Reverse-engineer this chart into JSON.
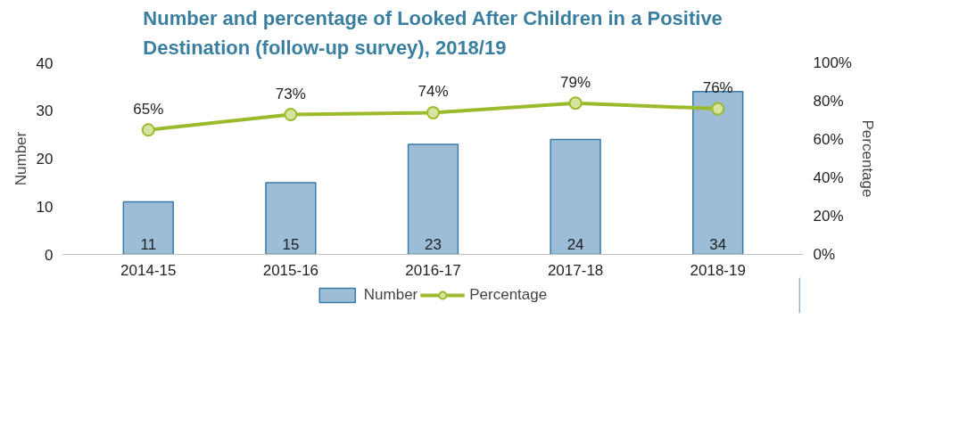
{
  "chart_data": {
    "type": "bar",
    "title": "Number and percentage of Looked After Children in a Positive Destination (follow-up survey), 2018/19",
    "ylabel": "Number",
    "y2label": "Percentage",
    "categories": [
      "2014-15",
      "2015-16",
      "2016-17",
      "2017-18",
      "2018-19"
    ],
    "series": [
      {
        "name": "Number",
        "color": "#9dbdd6",
        "values": [
          11,
          15,
          23,
          24,
          34
        ]
      },
      {
        "name": "Percentage",
        "type": "line",
        "axis": "y2",
        "color": "#9bbb2d",
        "marker": "circle",
        "values": [
          65,
          73,
          74,
          79,
          76
        ],
        "value_labels": [
          "65%",
          "73%",
          "74%",
          "79%",
          "76%"
        ]
      }
    ],
    "data_labels": true,
    "ylim": [
      0,
      40
    ],
    "yticks": [
      0,
      10,
      20,
      30,
      40
    ],
    "y2lim": [
      0,
      100
    ],
    "y2ticks": [
      {
        "value": 0,
        "label": "0%"
      },
      {
        "value": 20,
        "label": "20%"
      },
      {
        "value": 40,
        "label": "40%"
      },
      {
        "value": 60,
        "label": "60%"
      },
      {
        "value": 80,
        "label": "80%"
      },
      {
        "value": 100,
        "label": "100%"
      }
    ],
    "grid": false,
    "legend": "bottom"
  }
}
